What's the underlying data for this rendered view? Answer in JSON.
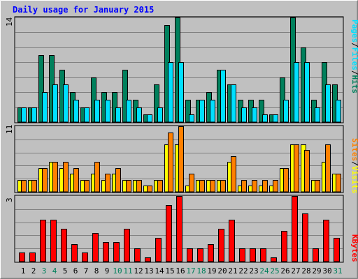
{
  "title": "Daily usage for January 2015",
  "colors": {
    "background": "#c0c0c0",
    "plot_bg": "#c0c0c0",
    "title": "#0000ff",
    "hits": "#00805c",
    "files": "#00e0ff",
    "visits": "#ffff00",
    "sites": "#ff8000",
    "kbytes": "#ff0000",
    "weekend": "#00805c",
    "day": "#000000"
  },
  "chart_data": [
    {
      "type": "bar",
      "panel": "top",
      "ymax_label": "14",
      "ylim": [
        0,
        14
      ],
      "legend_label": "Pages / Files / Hits",
      "legend_parts": [
        "Pages",
        "/",
        "Files",
        "/",
        "Hits"
      ],
      "categories": [
        "1",
        "2",
        "3",
        "4",
        "5",
        "6",
        "7",
        "8",
        "9",
        "10",
        "11",
        "12",
        "13",
        "14",
        "15",
        "16",
        "17",
        "18",
        "19",
        "20",
        "21",
        "22",
        "23",
        "24",
        "25",
        "26",
        "27",
        "28",
        "29",
        "30",
        "31"
      ],
      "series": [
        {
          "name": "Hits",
          "values": [
            2,
            2,
            9,
            9,
            7,
            4,
            2,
            6,
            4,
            4,
            7,
            3,
            1,
            5,
            13,
            14,
            3,
            3,
            4,
            7,
            5,
            3,
            3,
            3,
            1,
            6,
            14,
            10,
            3,
            8,
            5
          ]
        },
        {
          "name": "Files",
          "values": [
            2,
            2,
            4,
            5,
            5,
            3,
            2,
            3,
            3,
            2,
            3,
            2,
            1,
            2,
            8,
            8,
            1,
            3,
            3,
            7,
            5,
            2,
            2,
            1,
            1,
            3,
            8,
            8,
            2,
            5,
            3
          ]
        }
      ]
    },
    {
      "type": "bar",
      "panel": "middle",
      "ymax_label": "11",
      "ylim": [
        0,
        11
      ],
      "legend_label": "Sites / Visits",
      "legend_parts": [
        "Sites",
        "/",
        "Visits"
      ],
      "categories": [
        "1",
        "2",
        "3",
        "4",
        "5",
        "6",
        "7",
        "8",
        "9",
        "10",
        "11",
        "12",
        "13",
        "14",
        "15",
        "16",
        "17",
        "18",
        "19",
        "20",
        "21",
        "22",
        "23",
        "24",
        "25",
        "26",
        "27",
        "28",
        "29",
        "30",
        "31"
      ],
      "series": [
        {
          "name": "Visits",
          "values": [
            2,
            2,
            4,
            5,
            4,
            3,
            2,
            3,
            2,
            3,
            2,
            2,
            1,
            2,
            8,
            8,
            1,
            2,
            2,
            2,
            5,
            1,
            1,
            1,
            1,
            4,
            8,
            8,
            2,
            5,
            3
          ]
        },
        {
          "name": "Sites",
          "values": [
            2,
            2,
            4,
            5,
            5,
            4,
            2,
            5,
            3,
            4,
            2,
            2,
            1,
            2,
            10,
            11,
            3,
            2,
            2,
            2,
            6,
            2,
            2,
            2,
            2,
            4,
            8,
            7,
            2,
            8,
            3
          ]
        }
      ]
    },
    {
      "type": "bar",
      "panel": "bottom",
      "ymax_label": "3",
      "ylim": [
        0,
        3
      ],
      "legend_label": "KBytes",
      "legend_parts": [
        "KBytes"
      ],
      "categories": [
        "1",
        "2",
        "3",
        "4",
        "5",
        "6",
        "7",
        "8",
        "9",
        "10",
        "11",
        "12",
        "13",
        "14",
        "15",
        "16",
        "17",
        "18",
        "19",
        "20",
        "21",
        "22",
        "23",
        "24",
        "25",
        "26",
        "27",
        "28",
        "29",
        "30",
        "31"
      ],
      "series": [
        {
          "name": "KBytes",
          "values": [
            0.4,
            0.4,
            1.9,
            1.9,
            1.5,
            0.8,
            0.4,
            1.3,
            0.9,
            0.9,
            1.5,
            0.6,
            0.2,
            1.1,
            2.6,
            3.0,
            0.6,
            0.6,
            0.8,
            1.5,
            1.9,
            0.6,
            0.6,
            0.6,
            0.2,
            1.4,
            3.0,
            2.2,
            0.6,
            1.9,
            1.1
          ]
        }
      ]
    }
  ],
  "weekend_days": [
    "3",
    "4",
    "10",
    "11",
    "17",
    "18",
    "24",
    "25",
    "31"
  ]
}
